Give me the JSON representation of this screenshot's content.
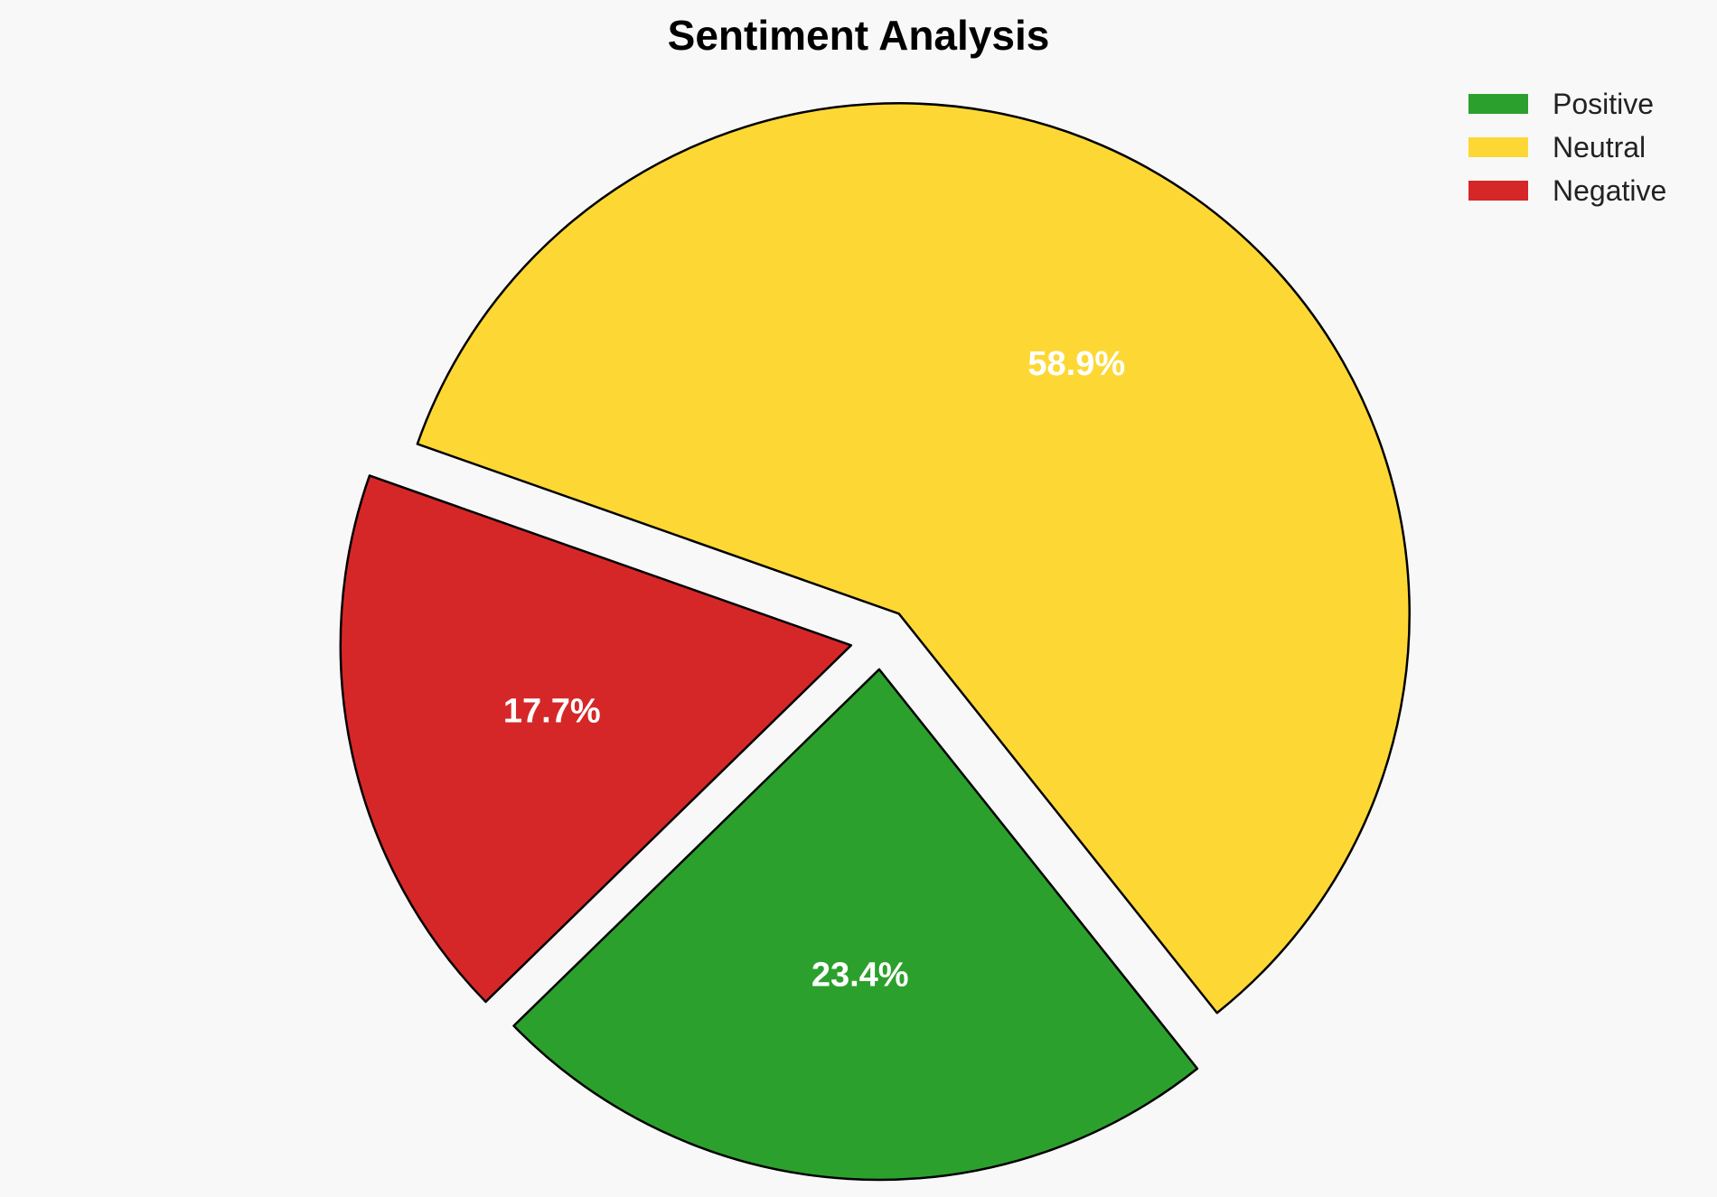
{
  "chart_data": {
    "type": "pie",
    "title": "Sentiment Analysis",
    "categories": [
      "Positive",
      "Neutral",
      "Negative"
    ],
    "values": [
      23.4,
      58.9,
      17.7
    ],
    "labels": [
      "23.4%",
      "58.9%",
      "17.7%"
    ],
    "colors": [
      "#2ca02c",
      "#fdd835",
      "#d62728"
    ],
    "exploded": true,
    "legend_position": "top-right"
  }
}
